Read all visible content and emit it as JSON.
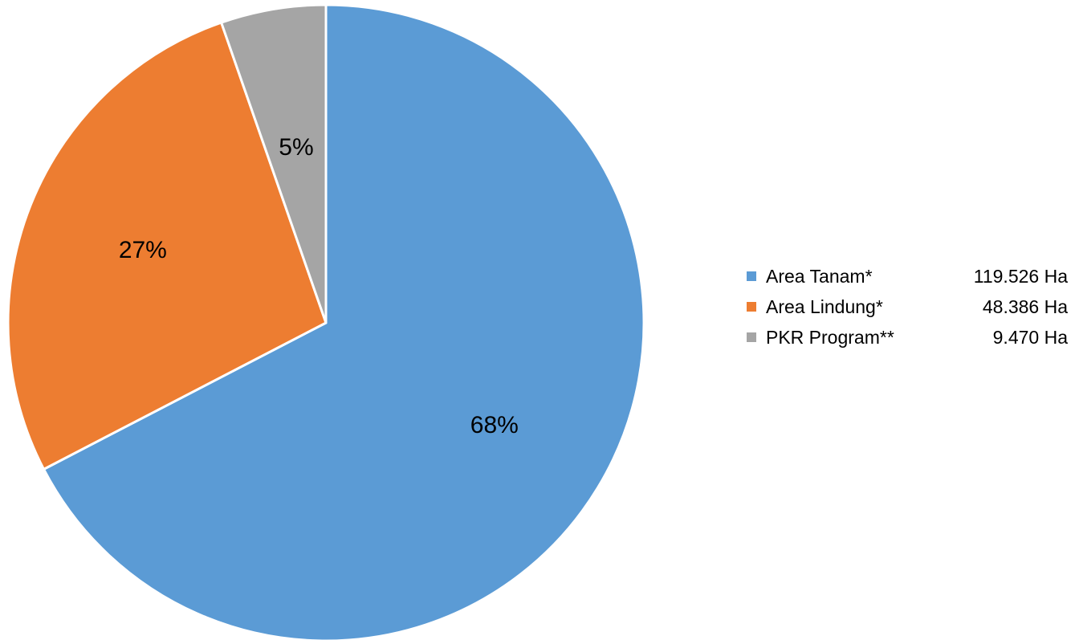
{
  "chart_data": {
    "type": "pie",
    "title": "",
    "start_angle_deg": 90,
    "direction": "clockwise",
    "slices": [
      {
        "label": "Area Tanam*",
        "value": 119526,
        "value_text": "119.526 Ha",
        "percent_text": "68%",
        "color": "#5B9BD5"
      },
      {
        "label": "Area Lindung*",
        "value": 48386,
        "value_text": "48.386 Ha",
        "percent_text": "27%",
        "color": "#ED7D31"
      },
      {
        "label": "PKR Program**",
        "value": 9470,
        "value_text": "9.470 Ha",
        "percent_text": "5%",
        "color": "#A5A5A5"
      }
    ],
    "legend_placement": "right"
  }
}
